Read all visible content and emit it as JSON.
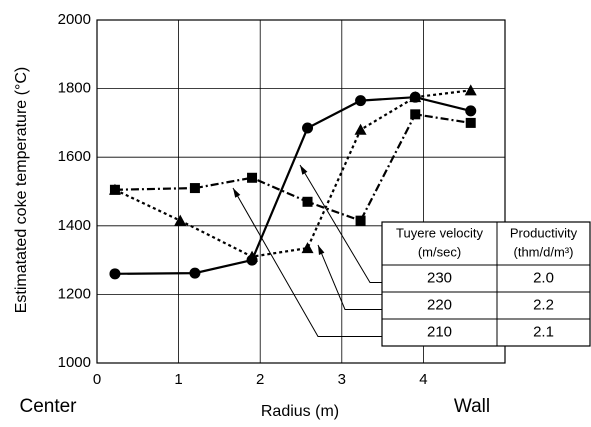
{
  "chart_data": {
    "type": "line",
    "y_label": "Estimatated coke temperature (°C)",
    "x_label": "Radius (m)",
    "annotations": {
      "left": "Center",
      "right": "Wall"
    },
    "xlim": [
      0,
      5
    ],
    "xticks": [
      0,
      1,
      2,
      3,
      4
    ],
    "ylim": [
      1000,
      2000
    ],
    "yticks": [
      1000,
      1200,
      1400,
      1600,
      1800,
      2000
    ],
    "grid": true,
    "legend_headers": [
      [
        "Tuyere velocity",
        "(m/sec)"
      ],
      [
        "Productivity",
        "(thm/d/m³)"
      ]
    ],
    "x": [
      0.22,
      1.2,
      1.9,
      2.58,
      3.23,
      3.9,
      4.58
    ],
    "series": [
      {
        "name": "230",
        "productivity": "2.0",
        "color": "#000",
        "marker": "circle",
        "dash": "solid",
        "values": [
          1260,
          1262,
          1300,
          1685,
          1765,
          1775,
          1735
        ]
      },
      {
        "name": "220",
        "productivity": "2.2",
        "color": "#000",
        "marker": "triangle",
        "dash": "dotted",
        "x": [
          0.22,
          1.02,
          1.9,
          2.58,
          3.23,
          3.9,
          4.58
        ],
        "values": [
          1505,
          1415,
          1310,
          1335,
          1680,
          1775,
          1795
        ]
      },
      {
        "name": "210",
        "productivity": "2.1",
        "color": "#000",
        "marker": "square",
        "dash": "dashdot",
        "values": [
          1505,
          1510,
          1540,
          1470,
          1415,
          1725,
          1700
        ]
      }
    ]
  }
}
